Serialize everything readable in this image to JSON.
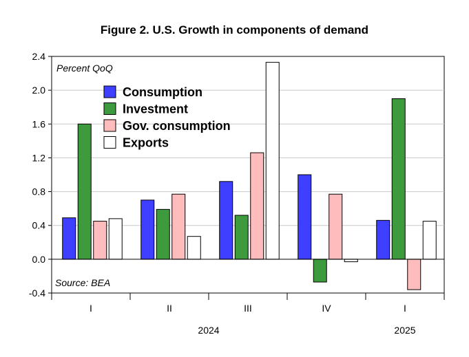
{
  "chart_data": {
    "type": "bar",
    "title": "Figure 2. U.S. Growth in components of demand",
    "ylabel_note": "Percent QoQ",
    "source_note": "Source: BEA",
    "ylim": [
      -0.4,
      2.4
    ],
    "yticks": [
      2.4,
      2.0,
      1.6,
      1.2,
      0.8,
      0.4,
      0.0,
      -0.4
    ],
    "ytick_labels": [
      "2.4",
      "2.0",
      "1.6",
      "1.2",
      "0.8",
      "0.4",
      "0.0",
      "-0.4"
    ],
    "grid": true,
    "legend_position": "top-left",
    "categories": [
      "I",
      "II",
      "III",
      "IV",
      "I"
    ],
    "years": [
      {
        "label": "2024",
        "start": 0,
        "end": 3
      },
      {
        "label": "2025",
        "start": 4,
        "end": 4
      }
    ],
    "series": [
      {
        "name": "Consumption",
        "color": "#3f3fff",
        "values": [
          0.49,
          0.7,
          0.92,
          1.0,
          0.46
        ]
      },
      {
        "name": "Investment",
        "color": "#3d9a3d",
        "values": [
          1.6,
          0.59,
          0.52,
          -0.27,
          1.9
        ]
      },
      {
        "name": "Gov. consumption",
        "color": "#ffbcbc",
        "values": [
          0.45,
          0.77,
          1.26,
          0.77,
          -0.36
        ]
      },
      {
        "name": "Exports",
        "color": "#ffffff",
        "values": [
          0.48,
          0.27,
          2.33,
          -0.03,
          0.45
        ]
      }
    ]
  }
}
